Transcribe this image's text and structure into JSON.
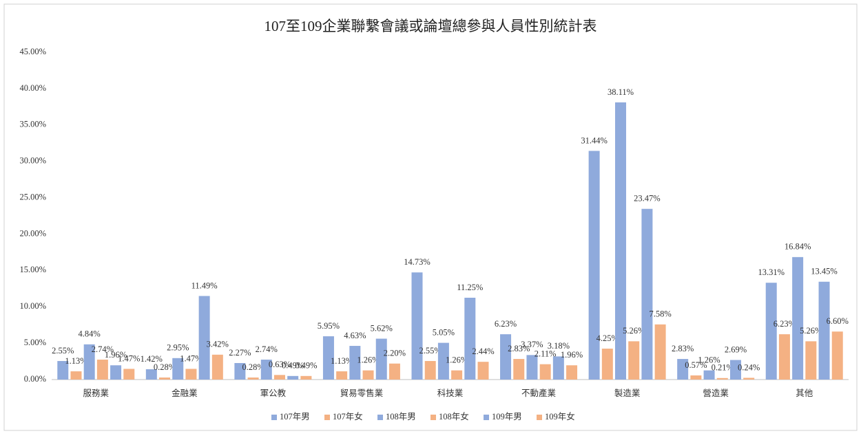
{
  "chart_data": {
    "type": "bar",
    "title": "107至109企業聯繫會議或論壇總參與人員性別統計表",
    "categories": [
      "服務業",
      "金融業",
      "軍公教",
      "貿易零售業",
      "科技業",
      "不動產業",
      "製造業",
      "營造業",
      "其他"
    ],
    "series": [
      {
        "name": "107年男",
        "color": "#8faadc",
        "values": [
          2.55,
          1.42,
          2.27,
          5.95,
          14.73,
          6.23,
          31.44,
          2.83,
          13.31
        ],
        "value_labels": [
          "2.55%",
          "1.42%",
          "2.27%",
          "5.95%",
          "14.73%",
          "6.23%",
          "31.44%",
          "2.83%",
          "13.31%"
        ]
      },
      {
        "name": "107年女",
        "color": "#f4b183",
        "values": [
          1.13,
          0.28,
          0.28,
          1.13,
          2.55,
          2.83,
          4.25,
          0.57,
          6.23
        ],
        "value_labels": [
          "1.13%",
          "0.28%",
          "0.28%",
          "1.13%",
          "2.55%",
          "2.83%",
          "4.25%",
          "0.57%",
          "6.23%"
        ]
      },
      {
        "name": "108年男",
        "color": "#8faadc",
        "values": [
          4.84,
          2.95,
          2.74,
          4.63,
          5.05,
          3.37,
          38.11,
          1.26,
          16.84
        ],
        "value_labels": [
          "4.84%",
          "2.95%",
          "2.74%",
          "4.63%",
          "5.05%",
          "3.37%",
          "38.11%",
          "1.26%",
          "16.84%"
        ]
      },
      {
        "name": "108年女",
        "color": "#f4b183",
        "values": [
          2.74,
          1.47,
          0.63,
          1.26,
          1.26,
          2.11,
          5.26,
          0.21,
          5.26
        ],
        "value_labels": [
          "2.74%",
          "1.47%",
          "0.63%",
          "1.26%",
          "1.26%",
          "2.11%",
          "5.26%",
          "0.21%",
          "5.26%"
        ]
      },
      {
        "name": "109年男",
        "color": "#8faadc",
        "values": [
          1.96,
          11.49,
          0.49,
          5.62,
          11.25,
          3.18,
          23.47,
          2.69,
          13.45
        ],
        "value_labels": [
          "1.96%",
          "11.49%",
          "0.49%",
          "5.62%",
          "11.25%",
          "3.18%",
          "23.47%",
          "2.69%",
          "13.45%"
        ]
      },
      {
        "name": "109年女",
        "color": "#f4b183",
        "values": [
          1.47,
          3.42,
          0.49,
          2.2,
          2.44,
          1.96,
          7.58,
          0.24,
          6.6
        ],
        "value_labels": [
          "1.47%",
          "3.42%",
          "0.49%",
          "2.20%",
          "2.44%",
          "1.96%",
          "7.58%",
          "0.24%",
          "6.60%"
        ]
      }
    ],
    "ylim": [
      0,
      45
    ],
    "yticks": [
      {
        "value": 0,
        "label": "0.00%"
      },
      {
        "value": 5,
        "label": "5.00%"
      },
      {
        "value": 10,
        "label": "10.00%"
      },
      {
        "value": 15,
        "label": "15.00%"
      },
      {
        "value": 20,
        "label": "20.00%"
      },
      {
        "value": 25,
        "label": "25.00%"
      },
      {
        "value": 30,
        "label": "30.00%"
      },
      {
        "value": 35,
        "label": "35.00%"
      },
      {
        "value": 40,
        "label": "40.00%"
      },
      {
        "value": 45,
        "label": "45.00%"
      }
    ],
    "legend": "bottom"
  }
}
